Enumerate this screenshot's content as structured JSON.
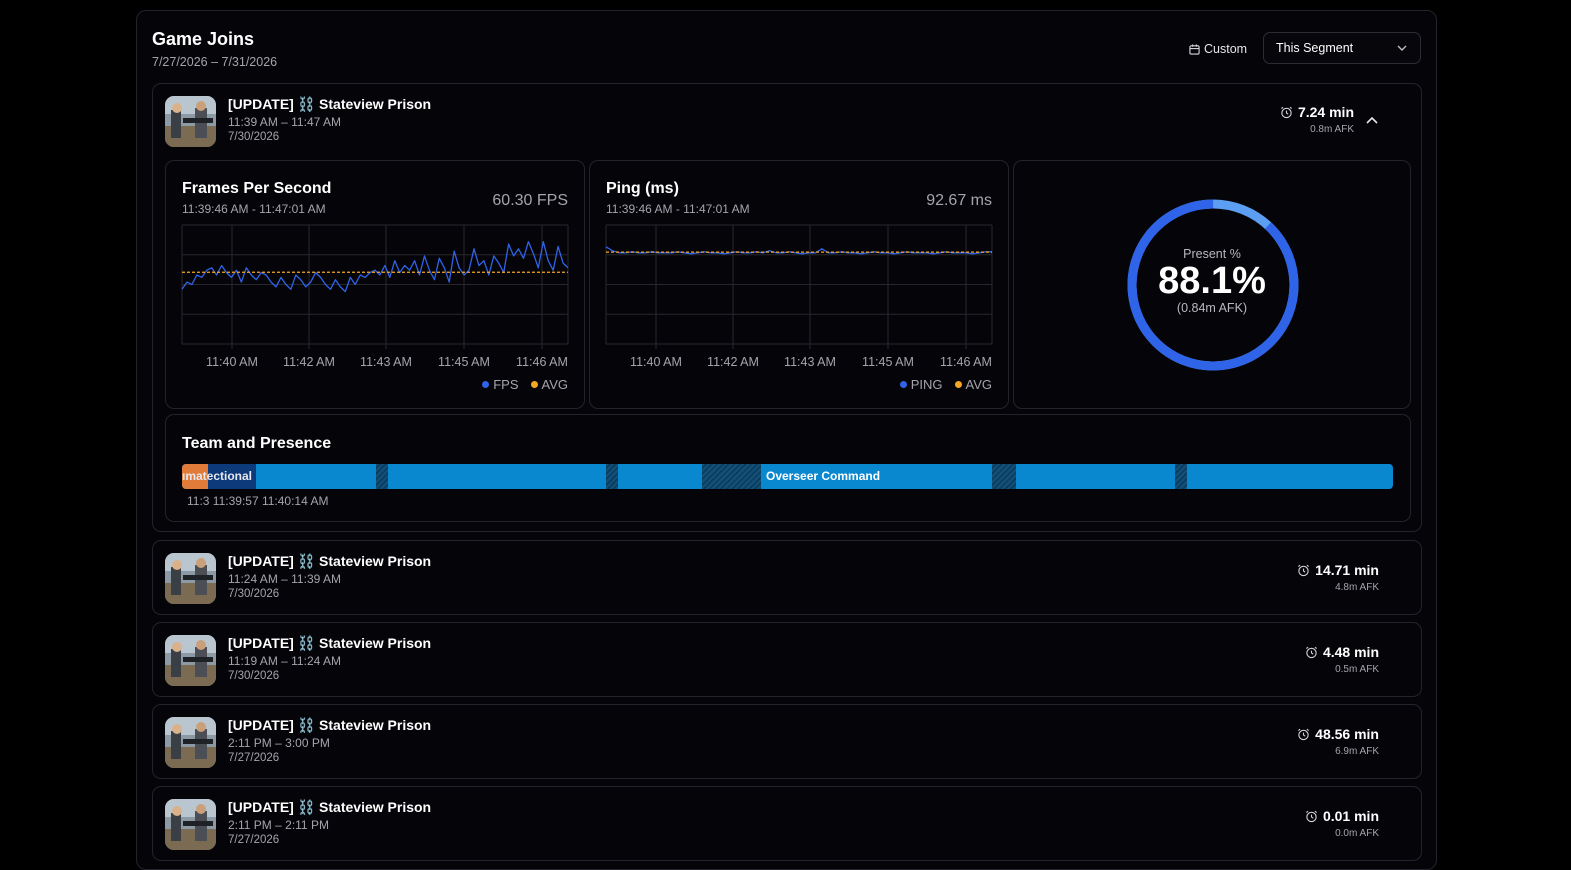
{
  "header": {
    "title": "Game Joins",
    "date_range": "7/27/2026 – 7/31/2026",
    "custom_label": "Custom",
    "segment_select": "This Segment"
  },
  "icons": {
    "calendar": "calendar-icon",
    "chevron_down": "chevron-down-icon",
    "chevron_up": "chevron-up-icon",
    "alarm": "alarm-clock-icon",
    "thumbnail": "game-thumbnail"
  },
  "colors": {
    "accent_blue": "#2f63e8",
    "light_blue": "#5b9ef2",
    "avg_orange": "#f5a623",
    "presence_blue": "#0a88cf",
    "team_orange": "#e07b39"
  },
  "joins": [
    {
      "title": "[UPDATE] ⛓️ Stateview Prison",
      "time": "11:39 AM – 11:47 AM",
      "date": "7/30/2026",
      "duration": "7.24 min",
      "afk": "0.8m AFK",
      "expanded": true
    },
    {
      "title": "[UPDATE] ⛓️ Stateview Prison",
      "time": "11:24 AM – 11:39 AM",
      "date": "7/30/2026",
      "duration": "14.71 min",
      "afk": "4.8m AFK"
    },
    {
      "title": "[UPDATE] ⛓️ Stateview Prison",
      "time": "11:19 AM – 11:24 AM",
      "date": "7/30/2026",
      "duration": "4.48 min",
      "afk": "0.5m AFK"
    },
    {
      "title": "[UPDATE] ⛓️ Stateview Prison",
      "time": "2:11 PM – 3:00 PM",
      "date": "7/27/2026",
      "duration": "48.56 min",
      "afk": "6.9m AFK"
    },
    {
      "title": "[UPDATE] ⛓️ Stateview Prison",
      "time": "2:11 PM – 2:11 PM",
      "date": "7/27/2026",
      "duration": "0.01 min",
      "afk": "0.0m AFK"
    }
  ],
  "fps_panel": {
    "title": "Frames Per Second",
    "range": "11:39:46 AM - 11:47:01 AM",
    "value": "60.30 FPS",
    "legend": [
      "FPS",
      "AVG"
    ]
  },
  "ping_panel": {
    "title": "Ping (ms)",
    "range": "11:39:46 AM - 11:47:01 AM",
    "value": "92.67 ms",
    "legend": [
      "PING",
      "AVG"
    ]
  },
  "present_panel": {
    "label": "Present %",
    "value": "88.1%",
    "afk": "(0.84m AFK)",
    "present_fraction": 0.881
  },
  "presence": {
    "title": "Team and Presence",
    "segment_labels": [
      "ımatectional",
      "Overseer Command"
    ],
    "times": "11:3 11:39:57 11:40:14 AM"
  },
  "chart_data": [
    {
      "type": "line",
      "title": "Frames Per Second",
      "x_ticks": [
        "11:40 AM",
        "11:42 AM",
        "11:43 AM",
        "11:45 AM",
        "11:46 AM"
      ],
      "ylim": [
        0,
        100
      ],
      "series": [
        {
          "name": "FPS",
          "values": [
            46,
            52,
            50,
            58,
            56,
            62,
            64,
            58,
            66,
            60,
            56,
            62,
            52,
            64,
            58,
            54,
            60,
            58,
            52,
            48,
            56,
            50,
            46,
            58,
            54,
            48,
            52,
            60,
            56,
            50,
            46,
            54,
            48,
            44,
            56,
            50,
            58,
            56,
            60,
            62,
            58,
            66,
            56,
            70,
            60,
            66,
            62,
            70,
            58,
            74,
            62,
            54,
            72,
            64,
            52,
            78,
            64,
            58,
            62,
            80,
            66,
            70,
            58,
            74,
            68,
            60,
            84,
            74,
            80,
            72,
            86,
            76,
            64,
            86,
            70,
            62,
            82,
            68,
            64
          ]
        },
        {
          "name": "AVG",
          "values": [
            60.3
          ]
        }
      ]
    },
    {
      "type": "line",
      "title": "Ping (ms)",
      "x_ticks": [
        "11:40 AM",
        "11:42 AM",
        "11:43 AM",
        "11:45 AM",
        "11:46 AM"
      ],
      "ylim": [
        0,
        120
      ],
      "series": [
        {
          "name": "PING",
          "values": [
            98,
            94,
            92,
            92,
            93,
            92,
            92,
            93,
            92,
            92,
            92,
            93,
            92,
            91,
            92,
            93,
            92,
            92,
            91,
            92,
            93,
            92,
            92,
            93,
            92,
            94,
            92,
            92,
            93,
            92,
            91,
            92,
            92,
            96,
            92,
            92,
            93,
            92,
            92,
            91,
            92,
            93,
            92,
            92,
            91,
            92,
            93,
            92,
            92,
            92,
            91,
            92,
            93,
            92,
            92,
            92,
            91,
            92,
            93,
            93
          ]
        },
        {
          "name": "AVG",
          "values": [
            92.67
          ]
        }
      ]
    }
  ]
}
